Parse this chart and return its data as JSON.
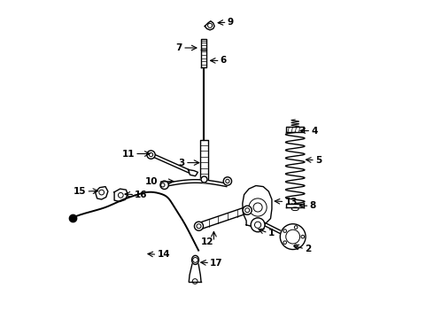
{
  "bg_color": "#ffffff",
  "line_color": "#000000",
  "label_positions": {
    "1": [
      0.62,
      0.285,
      0.66,
      0.27
    ],
    "2": [
      0.73,
      0.232,
      0.775,
      0.22
    ],
    "3": [
      0.455,
      0.49,
      0.4,
      0.49
    ],
    "4": [
      0.75,
      0.59,
      0.795,
      0.59
    ],
    "5": [
      0.768,
      0.5,
      0.808,
      0.498
    ],
    "6": [
      0.468,
      0.81,
      0.51,
      0.81
    ],
    "7": [
      0.447,
      0.85,
      0.392,
      0.85
    ],
    "8": [
      0.748,
      0.355,
      0.79,
      0.355
    ],
    "9": [
      0.492,
      0.928,
      0.532,
      0.93
    ],
    "10": [
      0.375,
      0.432,
      0.315,
      0.43
    ],
    "11": [
      0.3,
      0.518,
      0.242,
      0.518
    ],
    "12": [
      0.49,
      0.285,
      0.49,
      0.242
    ],
    "13": [
      0.67,
      0.37,
      0.712,
      0.368
    ],
    "14": [
      0.272,
      0.205,
      0.312,
      0.202
    ],
    "15": [
      0.138,
      0.402,
      0.09,
      0.4
    ],
    "16": [
      0.2,
      0.392,
      0.242,
      0.39
    ],
    "17": [
      0.438,
      0.178,
      0.478,
      0.176
    ]
  }
}
